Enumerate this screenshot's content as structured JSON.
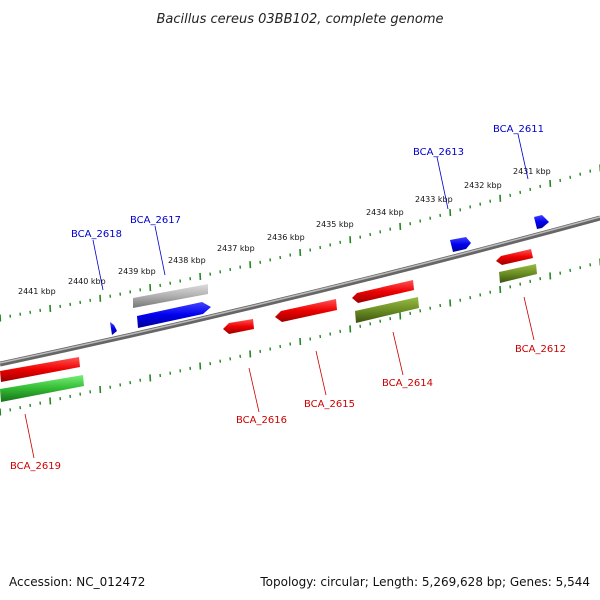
{
  "title": "Bacillus cereus 03BB102, complete genome",
  "footer": {
    "accession": "Accession: NC_012472",
    "summary": "Topology: circular; Length: 5,269,628 bp; Genes: 5,544"
  },
  "ruler": {
    "unit": "kbp",
    "labels": [
      "2441 kbp",
      "2440 kbp",
      "2439 kbp",
      "2438 kbp",
      "2437 kbp",
      "2436 kbp",
      "2435 kbp",
      "2434 kbp",
      "2433 kbp",
      "2432 kbp",
      "2431 kbp"
    ]
  },
  "genes_forward": [
    {
      "id": "BCA_2611",
      "color": "#0000ee"
    },
    {
      "id": "BCA_2613",
      "color": "#0000ee"
    },
    {
      "id": "BCA_2617",
      "color": "#0000ee"
    },
    {
      "id": "BCA_2618",
      "color": "#0000ee"
    }
  ],
  "genes_reverse": [
    {
      "id": "BCA_2612",
      "color": "#dd0000"
    },
    {
      "id": "BCA_2614",
      "color": "#dd0000"
    },
    {
      "id": "BCA_2615",
      "color": "#dd0000"
    },
    {
      "id": "BCA_2616",
      "color": "#dd0000"
    },
    {
      "id": "BCA_2619",
      "color": "#dd0000"
    }
  ],
  "colors": {
    "backbone": "#888888",
    "forward_cds": "#0000ee",
    "reverse_cds": "#ee0000",
    "reverse_feature": "#6b8e23",
    "forward_feature": "#b0b0b0",
    "green_feature": "#33bb33",
    "tick": "#228822"
  }
}
